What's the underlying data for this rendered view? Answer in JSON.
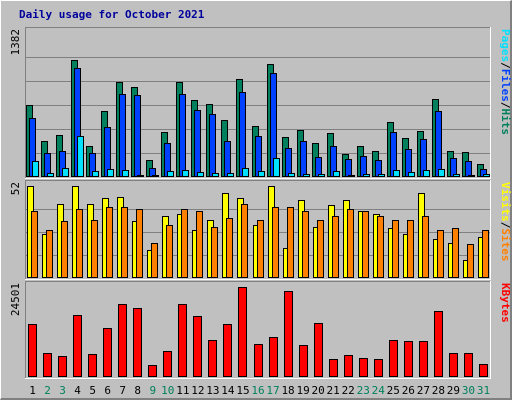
{
  "chart_data": {
    "type": "bar",
    "title": "Daily usage for October 2021",
    "categories": [
      "1",
      "2",
      "3",
      "4",
      "5",
      "6",
      "7",
      "8",
      "9",
      "10",
      "11",
      "12",
      "13",
      "14",
      "15",
      "16",
      "17",
      "18",
      "19",
      "20",
      "21",
      "22",
      "23",
      "24",
      "25",
      "26",
      "27",
      "28",
      "29",
      "30",
      "31"
    ],
    "weekend_days": [
      2,
      3,
      9,
      10,
      16,
      17,
      23,
      24,
      30,
      31
    ],
    "colors": {
      "hits": "#00805c",
      "files": "#0040ff",
      "pages": "#00e0ff",
      "visits": "#ffff00",
      "sites": "#ff8000",
      "kbytes": "#ff0000",
      "title": "#00009c",
      "weekday": "#000000",
      "weekend": "#00805c",
      "background": "#c0c0c0",
      "grid": "#808080"
    },
    "panels": [
      {
        "id": "hits-files-pages",
        "max_label": "1382",
        "ymax": 1382,
        "series": [
          {
            "name": "Hits",
            "color": "#00805c",
            "values": [
              690,
              350,
              400,
              1120,
              300,
              630,
              910,
              860,
              160,
              430,
              910,
              740,
              700,
              550,
              940,
              490,
              1080,
              380,
              450,
              330,
              420,
              220,
              300,
              250,
              530,
              370,
              440,
              750,
              250,
              240,
              120
            ]
          },
          {
            "name": "Files",
            "color": "#0040ff",
            "values": [
              570,
              230,
              250,
              1050,
              230,
              480,
              800,
              790,
              90,
              330,
              800,
              640,
              600,
              350,
              820,
              390,
              1000,
              280,
              350,
              190,
              300,
              170,
              200,
              160,
              430,
              270,
              360,
              630,
              180,
              150,
              80
            ]
          },
          {
            "name": "Pages",
            "color": "#00e0ff",
            "values": [
              150,
              40,
              90,
              390,
              60,
              80,
              70,
              20,
              20,
              60,
              70,
              50,
              40,
              40,
              90,
              60,
              180,
              40,
              30,
              30,
              60,
              20,
              30,
              30,
              70,
              50,
              70,
              80,
              30,
              20,
              30
            ]
          }
        ],
        "legend": [
          {
            "text": "Hits",
            "color": "#00805c"
          },
          {
            "text": "Files",
            "color": "#0040ff"
          },
          {
            "text": "Pages",
            "color": "#00e0ff"
          }
        ]
      },
      {
        "id": "visits-sites",
        "max_label": "52",
        "ymax": 52,
        "series": [
          {
            "name": "Visits",
            "color": "#ffff00",
            "values": [
              52,
              25,
              42,
              52,
              42,
              45,
              46,
              32,
              16,
              35,
              36,
              27,
              33,
              48,
              45,
              30,
              52,
              17,
              44,
              29,
              41,
              44,
              38,
              36,
              28,
              25,
              48,
              22,
              20,
              10,
              23
            ]
          },
          {
            "name": "Sites",
            "color": "#ff8000",
            "values": [
              38,
              27,
              32,
              39,
              33,
              40,
              40,
              39,
              20,
              30,
              39,
              38,
              29,
              34,
              42,
              33,
              40,
              40,
              38,
              33,
              35,
              39,
              38,
              35,
              33,
              33,
              35,
              27,
              28,
              19,
              27
            ]
          }
        ],
        "legend": [
          {
            "text": "Sites",
            "color": "#ff8000"
          },
          {
            "text": "Visits",
            "color": "#ffff00"
          }
        ]
      },
      {
        "id": "kbytes",
        "max_label": "24501",
        "ymax": 24501,
        "series": [
          {
            "name": "KBytes",
            "color": "#ff0000",
            "values": [
              14500,
              6500,
              5800,
              16800,
              6300,
              13300,
              20000,
              18900,
              3300,
              7200,
              20000,
              16500,
              10200,
              14500,
              24501,
              9100,
              10900,
              23500,
              8700,
              14800,
              5000,
              6100,
              5300,
              4800,
              10000,
              9800,
              9900,
              17900,
              6500,
              6600,
              3500
            ]
          }
        ],
        "legend": [
          {
            "text": "KBytes",
            "color": "#ff0000"
          }
        ]
      }
    ]
  }
}
